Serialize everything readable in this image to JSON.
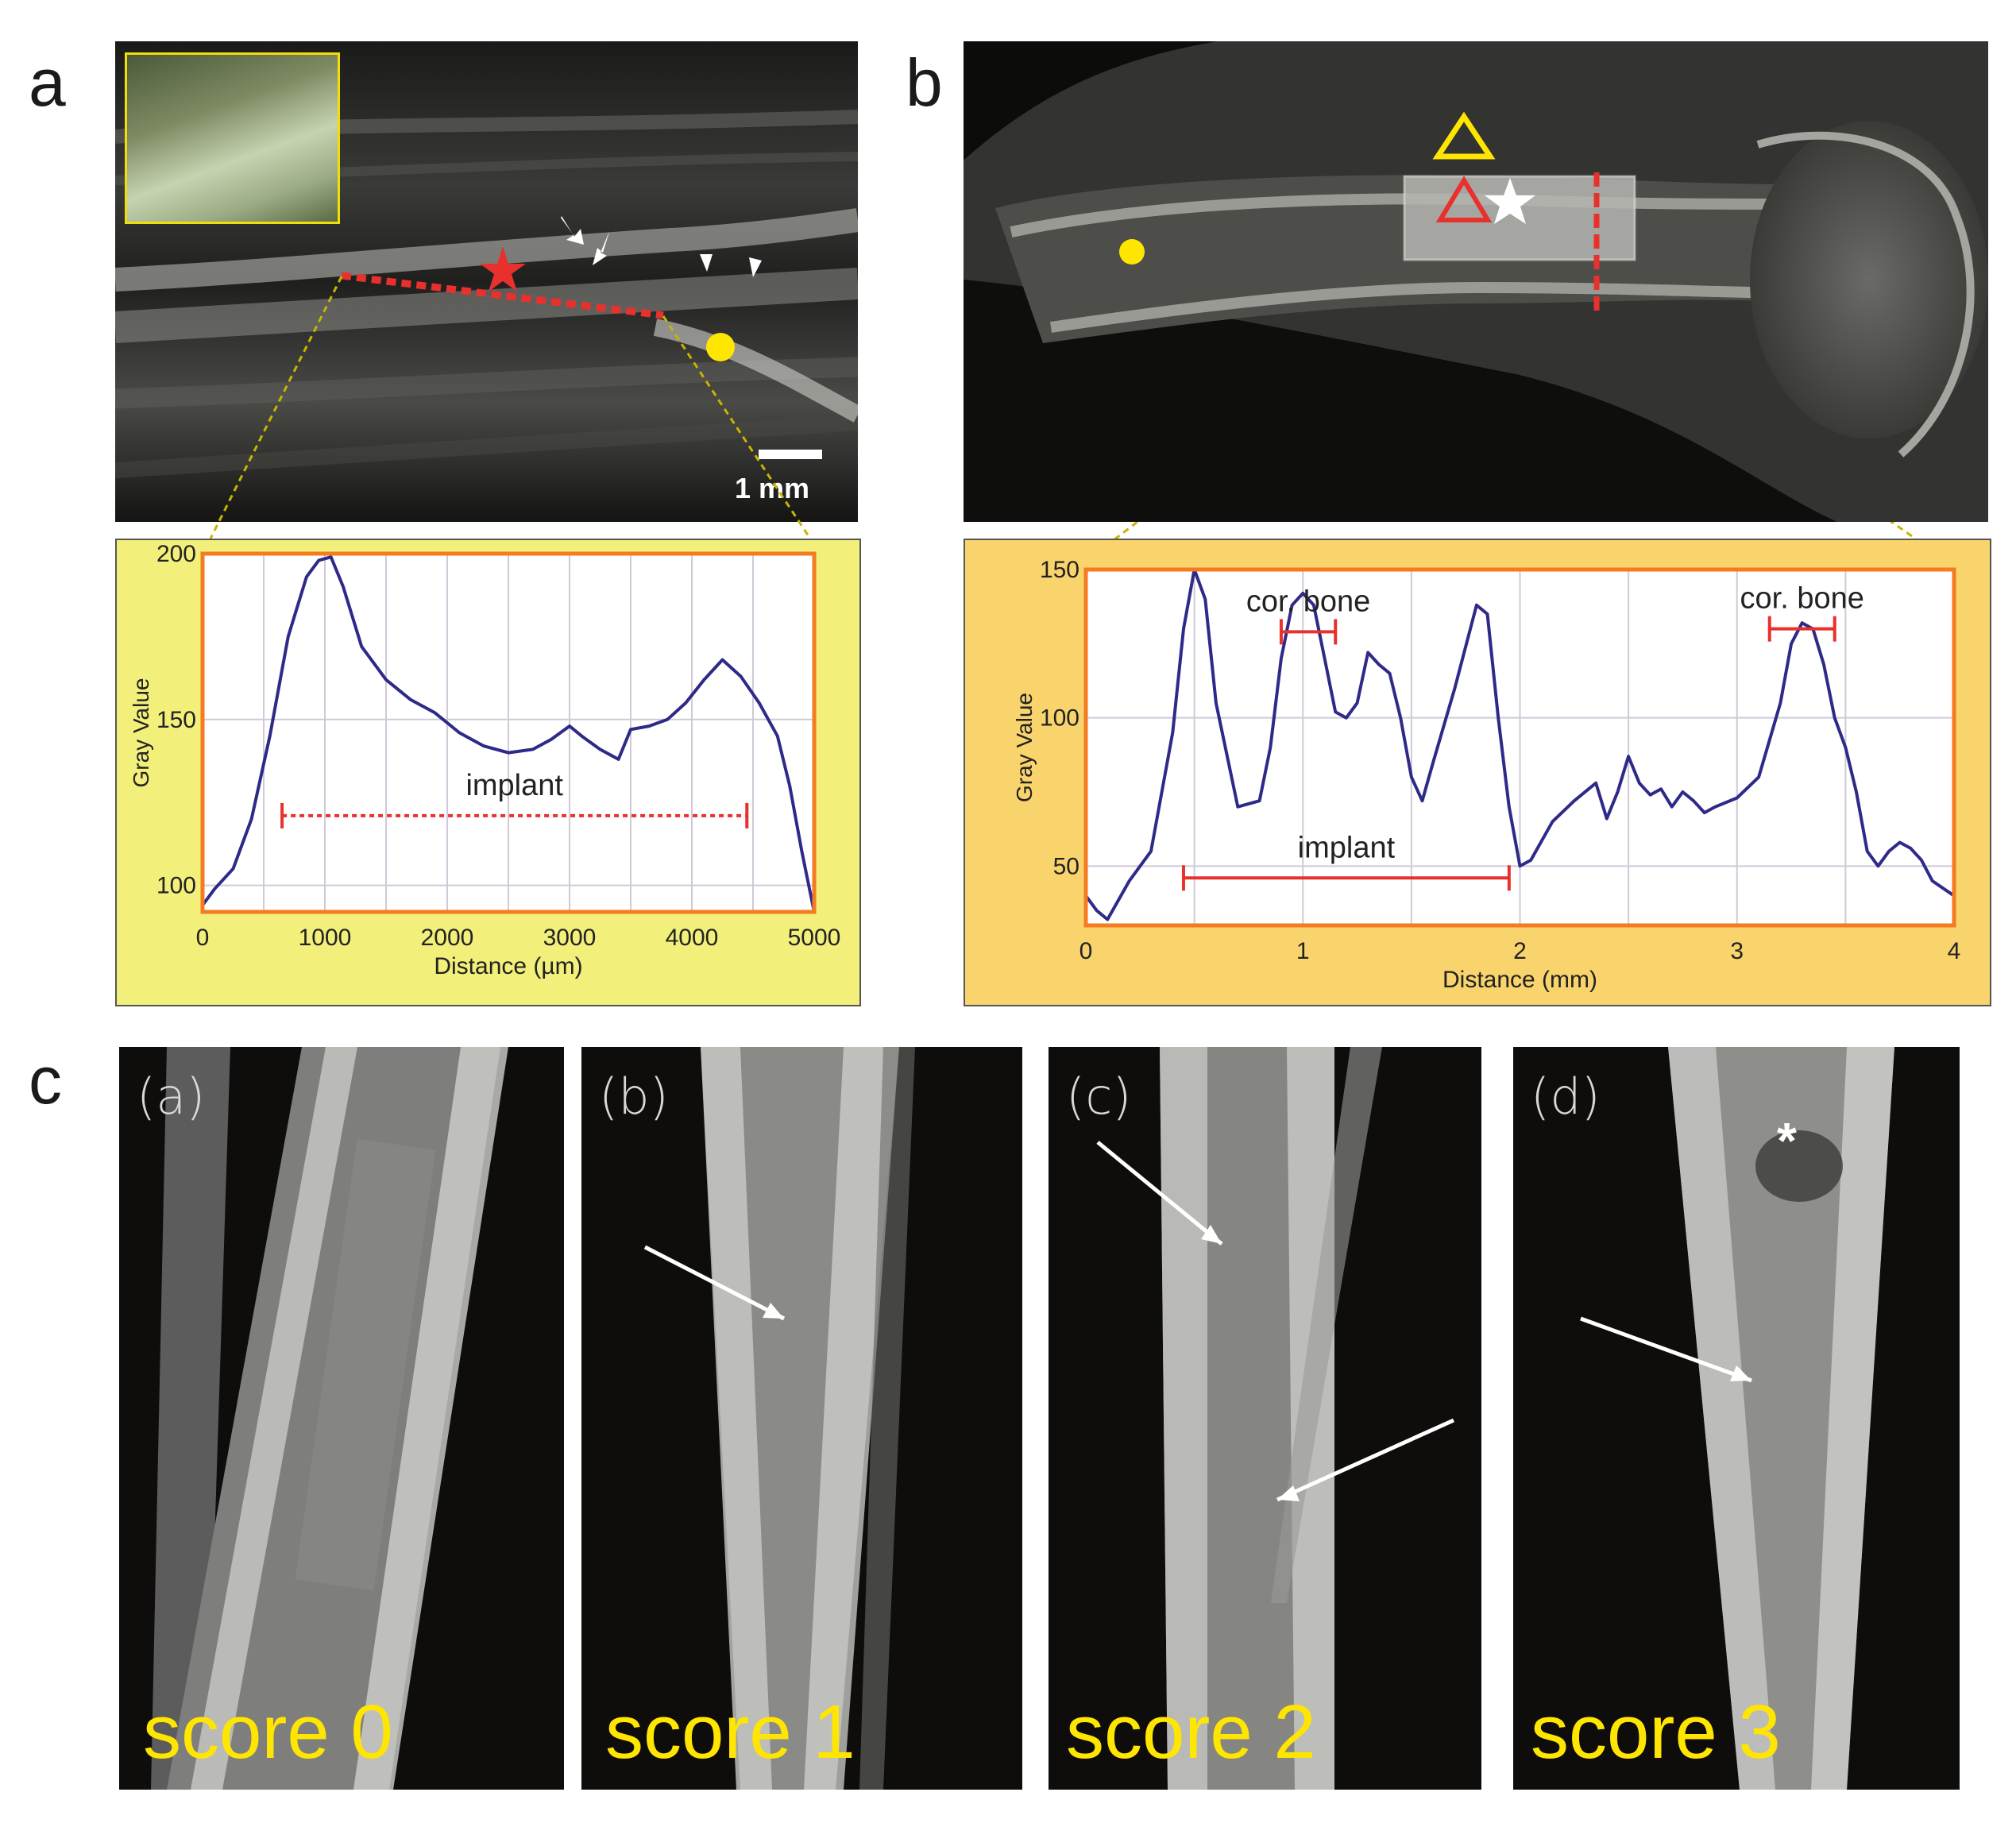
{
  "figure": {
    "panel_a": {
      "letter": "a",
      "scale_bar_label": "1 mm",
      "implant_label": "implant",
      "accent_colors": {
        "plot_bg": "#f2ef7a",
        "frame": "#f47b20",
        "line": "#2e2a88",
        "marker": "#e8312d",
        "yellow": "#ffe600"
      }
    },
    "panel_b": {
      "letter": "b",
      "implant_label": "implant",
      "cor_bone_label_1": "cor. bone",
      "cor_bone_label_2": "cor. bone",
      "accent_colors": {
        "plot_bg": "#f9d36c",
        "frame": "#f47b20",
        "line": "#2e2a88",
        "marker": "#e8312d",
        "yellow": "#ffe600"
      }
    },
    "panel_c": {
      "letter": "c",
      "subpanels": [
        {
          "label": "(a)",
          "score": "score 0"
        },
        {
          "label": "(b)",
          "score": "score 1"
        },
        {
          "label": "(c)",
          "score": "score 2"
        },
        {
          "label": "(d)",
          "score": "score 3"
        }
      ],
      "asterisk": "*"
    }
  },
  "chart_data": [
    {
      "type": "line",
      "panel": "a",
      "xlabel": "Distance (µm)",
      "ylabel": "Gray Value",
      "xlim": [
        0,
        5000
      ],
      "ylim": [
        92,
        200
      ],
      "xticks": [
        0,
        1000,
        2000,
        3000,
        4000,
        5000
      ],
      "yticks": [
        100,
        150,
        200
      ],
      "grid": true,
      "x": [
        0,
        100,
        250,
        400,
        550,
        700,
        850,
        950,
        1050,
        1150,
        1300,
        1500,
        1700,
        1900,
        2100,
        2300,
        2500,
        2700,
        2850,
        3000,
        3100,
        3250,
        3400,
        3500,
        3650,
        3800,
        3950,
        4100,
        4250,
        4400,
        4550,
        4700,
        4800,
        4900,
        5000
      ],
      "y": [
        94,
        99,
        105,
        120,
        145,
        175,
        193,
        198,
        199,
        190,
        172,
        162,
        156,
        152,
        146,
        142,
        140,
        141,
        144,
        148,
        145,
        141,
        138,
        147,
        148,
        150,
        155,
        162,
        168,
        163,
        155,
        145,
        130,
        110,
        92
      ],
      "annotations": [
        {
          "text": "implant",
          "x_range": [
            650,
            4450
          ],
          "y": 121
        }
      ]
    },
    {
      "type": "line",
      "panel": "b",
      "xlabel": "Distance (mm)",
      "ylabel": "Gray Value",
      "xlim": [
        0,
        4
      ],
      "ylim": [
        30,
        150
      ],
      "xticks": [
        0,
        1,
        2,
        3,
        4
      ],
      "yticks": [
        50,
        100,
        150
      ],
      "grid": true,
      "x": [
        0,
        0.05,
        0.1,
        0.2,
        0.3,
        0.4,
        0.45,
        0.5,
        0.55,
        0.6,
        0.7,
        0.8,
        0.85,
        0.9,
        0.95,
        1.0,
        1.05,
        1.1,
        1.15,
        1.2,
        1.25,
        1.3,
        1.35,
        1.4,
        1.45,
        1.5,
        1.55,
        1.6,
        1.7,
        1.8,
        1.85,
        1.9,
        1.95,
        2.0,
        2.05,
        2.15,
        2.25,
        2.35,
        2.4,
        2.45,
        2.5,
        2.55,
        2.6,
        2.65,
        2.7,
        2.75,
        2.8,
        2.85,
        2.9,
        3.0,
        3.1,
        3.2,
        3.25,
        3.3,
        3.35,
        3.4,
        3.45,
        3.5,
        3.55,
        3.6,
        3.65,
        3.7,
        3.75,
        3.8,
        3.85,
        3.9,
        4.0
      ],
      "y": [
        40,
        35,
        32,
        45,
        55,
        95,
        130,
        150,
        140,
        105,
        70,
        72,
        90,
        120,
        138,
        142,
        138,
        120,
        102,
        100,
        105,
        122,
        118,
        115,
        100,
        80,
        72,
        85,
        110,
        138,
        135,
        100,
        70,
        50,
        52,
        65,
        72,
        78,
        66,
        75,
        87,
        78,
        74,
        76,
        70,
        75,
        72,
        68,
        70,
        73,
        80,
        105,
        125,
        132,
        130,
        118,
        100,
        90,
        75,
        55,
        50,
        55,
        58,
        56,
        52,
        45,
        40
      ],
      "annotations": [
        {
          "text": "implant",
          "x_range": [
            0.45,
            1.95
          ],
          "y": 46
        },
        {
          "text": "cor. bone",
          "x_range": [
            0.9,
            1.15
          ],
          "y": 129
        },
        {
          "text": "cor. bone",
          "x_range": [
            3.15,
            3.45
          ],
          "y": 130
        }
      ]
    }
  ]
}
